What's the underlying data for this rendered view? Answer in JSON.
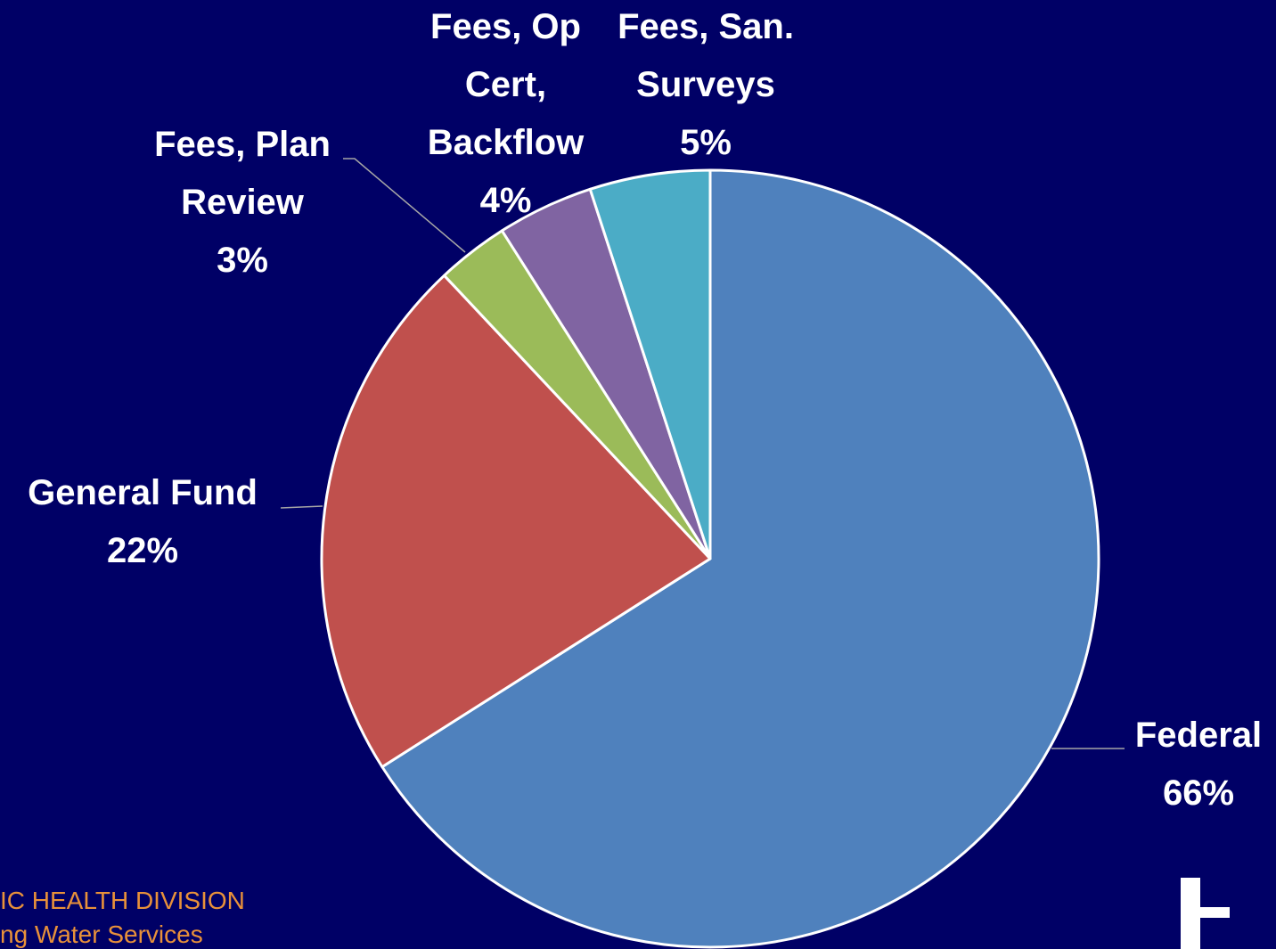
{
  "chart_data": {
    "type": "pie",
    "categories": [
      "Federal",
      "General Fund",
      "Fees, Plan Review",
      "Fees, Op Cert, Backflow",
      "Fees, San. Surveys"
    ],
    "values": [
      66,
      22,
      3,
      4,
      5
    ],
    "value_labels": [
      "66%",
      "22%",
      "3%",
      "4%",
      "5%"
    ],
    "colors": [
      "#4f81bd",
      "#c0504d",
      "#9bbb59",
      "#8064a2",
      "#4bacc6"
    ]
  },
  "footer": {
    "line1": "IC HEALTH DIVISION",
    "line2": "ng Water Services"
  }
}
